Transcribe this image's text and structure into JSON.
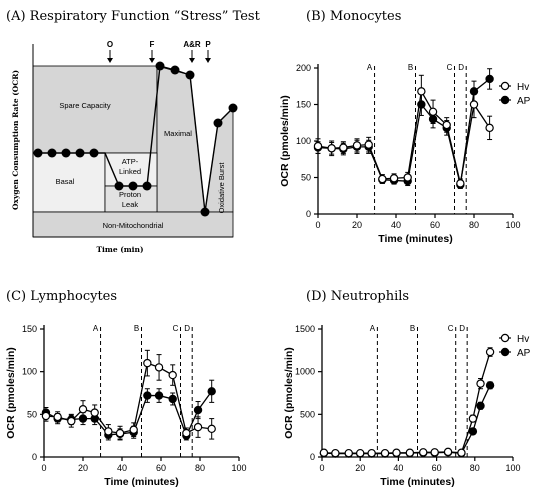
{
  "figure": {
    "panel_a": {
      "title": "(A) Respiratory Function “Stress” Test",
      "ylabel": "Oxygen Consumption Rate (OCR)",
      "xlabel": "Time (min)",
      "injections": [
        "O",
        "F",
        "A&R",
        "P"
      ],
      "regions": {
        "spare": "Spare Capacity",
        "basal": "Basal",
        "atp": [
          "ATP-",
          "Linked"
        ],
        "proton": [
          "Proton",
          "Leak"
        ],
        "maximal": "Maximal",
        "oxburst": "Oxidative Burst",
        "nonmito": "Non-Mitochondrial"
      }
    }
  },
  "chart_data": [
    {
      "panel": "B",
      "type": "line",
      "title": "(B) Monocytes",
      "xlabel": "Time (minutes)",
      "ylabel": "OCR (pmoles/min)",
      "xlim": [
        0,
        100
      ],
      "ylim": [
        0,
        200
      ],
      "xticks": [
        0,
        20,
        40,
        60,
        80,
        100
      ],
      "yticks": [
        0,
        50,
        100,
        150,
        200
      ],
      "injection_markers": [
        {
          "label": "A",
          "x": 29
        },
        {
          "label": "B",
          "x": 50
        },
        {
          "label": "C",
          "x": 70
        },
        {
          "label": "D",
          "x": 76
        }
      ],
      "legend": [
        "Hv",
        "AP"
      ],
      "x": [
        0,
        7,
        13,
        20,
        26,
        33,
        39,
        46,
        53,
        59,
        66,
        73,
        80,
        88
      ],
      "series": [
        {
          "name": "Hv",
          "marker": "open",
          "values": [
            93,
            90,
            91,
            94,
            95,
            48,
            49,
            50,
            168,
            140,
            122,
            42,
            150,
            118
          ],
          "errors": [
            10,
            10,
            8,
            9,
            10,
            6,
            6,
            7,
            22,
            16,
            10,
            6,
            18,
            16
          ]
        },
        {
          "name": "AP",
          "marker": "filled",
          "values": [
            91,
            90,
            89,
            92,
            92,
            47,
            46,
            45,
            150,
            130,
            118,
            40,
            168,
            185
          ],
          "errors": [
            8,
            8,
            8,
            9,
            9,
            5,
            5,
            6,
            15,
            12,
            10,
            5,
            14,
            14
          ]
        }
      ]
    },
    {
      "panel": "C",
      "type": "line",
      "title": "(C) Lymphocytes",
      "xlabel": "Time (minutes)",
      "ylabel": "OCR (pmoles/min)",
      "xlim": [
        0,
        100
      ],
      "ylim": [
        0,
        150
      ],
      "xticks": [
        0,
        20,
        40,
        60,
        80,
        100
      ],
      "yticks": [
        0,
        50,
        100,
        150
      ],
      "injection_markers": [
        {
          "label": "A",
          "x": 29
        },
        {
          "label": "B",
          "x": 50
        },
        {
          "label": "C",
          "x": 70
        },
        {
          "label": "D",
          "x": 76
        }
      ],
      "legend": [],
      "x": [
        1,
        7,
        14,
        20,
        26,
        33,
        39,
        46,
        53,
        59,
        66,
        73,
        79,
        86
      ],
      "series": [
        {
          "name": "Hv",
          "marker": "open",
          "values": [
            48,
            47,
            42,
            56,
            52,
            30,
            28,
            32,
            110,
            105,
            96,
            28,
            35,
            33
          ],
          "errors": [
            6,
            6,
            7,
            10,
            9,
            8,
            8,
            8,
            15,
            15,
            12,
            6,
            12,
            12
          ]
        },
        {
          "name": "AP",
          "marker": "filled",
          "values": [
            52,
            45,
            44,
            45,
            45,
            26,
            27,
            29,
            72,
            72,
            68,
            25,
            55,
            77
          ],
          "errors": [
            6,
            6,
            6,
            7,
            7,
            6,
            6,
            7,
            8,
            8,
            7,
            5,
            10,
            13
          ]
        }
      ]
    },
    {
      "panel": "D",
      "type": "line",
      "title": "(D) Neutrophils",
      "xlabel": "Time (minutes)",
      "ylabel": "OCR (pmoles/min)",
      "xlim": [
        0,
        100
      ],
      "ylim": [
        0,
        1500
      ],
      "xticks": [
        0,
        20,
        40,
        60,
        80,
        100
      ],
      "yticks": [
        0,
        500,
        1000,
        1500
      ],
      "injection_markers": [
        {
          "label": "A",
          "x": 29
        },
        {
          "label": "B",
          "x": 50
        },
        {
          "label": "C",
          "x": 70
        },
        {
          "label": "D",
          "x": 76
        }
      ],
      "legend": [
        "Hv",
        "AP"
      ],
      "x": [
        1,
        7,
        14,
        20,
        26,
        33,
        39,
        46,
        53,
        59,
        66,
        73,
        79,
        83,
        88
      ],
      "series": [
        {
          "name": "Hv",
          "marker": "open",
          "values": [
            50,
            45,
            45,
            45,
            45,
            45,
            50,
            50,
            55,
            55,
            60,
            50,
            450,
            860,
            1230
          ],
          "errors": [
            8,
            8,
            8,
            8,
            8,
            8,
            8,
            8,
            10,
            10,
            10,
            8,
            40,
            60,
            50
          ]
        },
        {
          "name": "AP",
          "marker": "filled",
          "values": [
            45,
            40,
            40,
            40,
            40,
            40,
            45,
            45,
            50,
            50,
            55,
            45,
            300,
            600,
            840
          ],
          "errors": [
            8,
            8,
            8,
            8,
            8,
            8,
            8,
            8,
            10,
            10,
            10,
            8,
            30,
            40,
            40
          ]
        }
      ]
    }
  ]
}
